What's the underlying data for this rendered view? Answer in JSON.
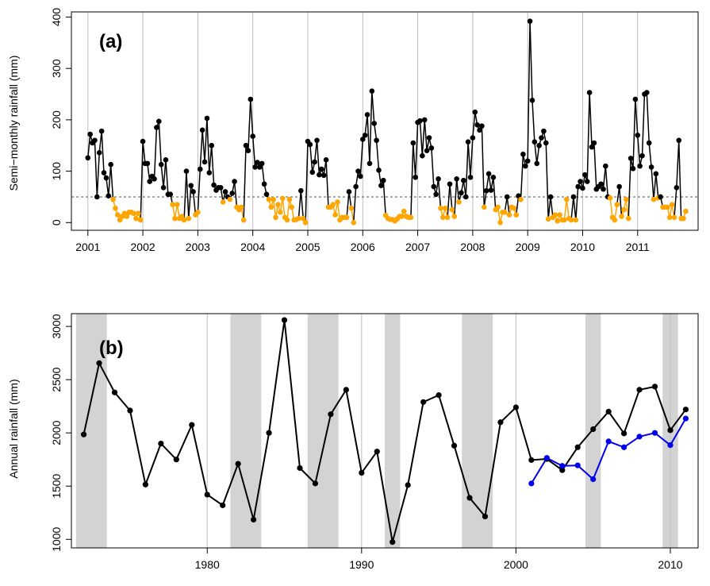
{
  "chart_data": [
    {
      "type": "line",
      "panel_label": "(a)",
      "ylabel": "Semi−monthly rainfall (mm)",
      "xlim": [
        2000.7,
        2012.1
      ],
      "ylim": [
        -15,
        410
      ],
      "x_ticks": [
        2001,
        2002,
        2003,
        2004,
        2005,
        2006,
        2007,
        2008,
        2009,
        2010,
        2011
      ],
      "y_ticks": [
        0,
        100,
        200,
        300,
        400
      ],
      "grid": "vertical lines at each year",
      "threshold": 50,
      "colors": {
        "above_threshold": "#000000",
        "below_threshold": "#ffa500",
        "grid": "#bebebe",
        "threshold": "#555555"
      },
      "series": [
        {
          "values": [
            126,
            172,
            155,
            160,
            50,
            136,
            178,
            97,
            87,
            52,
            113,
            45,
            28,
            15,
            5,
            12,
            18,
            12,
            20,
            20,
            18,
            8,
            18,
            5,
            158,
            115,
            115,
            80,
            90,
            85,
            185,
            197,
            113,
            68,
            122,
            55,
            55,
            35,
            8,
            35,
            8,
            12,
            5,
            100,
            8,
            72,
            60,
            15,
            20,
            104,
            180,
            118,
            203,
            97,
            150,
            73,
            63,
            68,
            68,
            40,
            60,
            50,
            45,
            57,
            80,
            30,
            25,
            30,
            5,
            150,
            140,
            240,
            168,
            108,
            117,
            108,
            115,
            75,
            55,
            45,
            30,
            45,
            10,
            35,
            20,
            47,
            10,
            5,
            45,
            30,
            5,
            6,
            8,
            62,
            8,
            0,
            158,
            152,
            98,
            118,
            160,
            93,
            104,
            92,
            122,
            30,
            30,
            35,
            15,
            40,
            5,
            10,
            10,
            10,
            60,
            28,
            0,
            70,
            100,
            90,
            162,
            170,
            210,
            115,
            256,
            193,
            160,
            102,
            72,
            82,
            14,
            8,
            6,
            6,
            3,
            7,
            12,
            12,
            22,
            12,
            10,
            10,
            155,
            88,
            195,
            198,
            130,
            200,
            140,
            165,
            145,
            70,
            55,
            85,
            28,
            10,
            28,
            10,
            75,
            25,
            12,
            85,
            40,
            58,
            82,
            50,
            157,
            88,
            165,
            215,
            190,
            180,
            188,
            30,
            62,
            95,
            63,
            88,
            25,
            30,
            0,
            20,
            20,
            50,
            15,
            30,
            28,
            15,
            52,
            45,
            133,
            110,
            120,
            392,
            238,
            157,
            115,
            150,
            165,
            178,
            155,
            7,
            50,
            10,
            15,
            3,
            15,
            5,
            5,
            45,
            8,
            5,
            50,
            5,
            70,
            80,
            67,
            93,
            80,
            253,
            147,
            155,
            65,
            70,
            75,
            65,
            110,
            50,
            48,
            10,
            5,
            35,
            70,
            12,
            25,
            45,
            8,
            125,
            105,
            240,
            170,
            110,
            130,
            250,
            253,
            155,
            108,
            45,
            95,
            48,
            50,
            30,
            30,
            30,
            10,
            35,
            10,
            68,
            160,
            8,
            8,
            22
          ]
        }
      ]
    },
    {
      "type": "line",
      "panel_label": "(b)",
      "ylabel": "Annual rainfall (mm)",
      "xlim": [
        1971.2,
        2011.8
      ],
      "ylim": [
        920,
        3120
      ],
      "x_ticks": [
        1980,
        1990,
        2000,
        2010
      ],
      "y_ticks": [
        1000,
        1500,
        2000,
        2500,
        3000
      ],
      "shaded_periods": [
        [
          1971.5,
          1973.5
        ],
        [
          1981.5,
          1983.5
        ],
        [
          1986.5,
          1988.5
        ],
        [
          1991.5,
          1992.5
        ],
        [
          1996.5,
          1998.5
        ],
        [
          2004.5,
          2005.5
        ],
        [
          2009.5,
          2010.5
        ]
      ],
      "colors": {
        "shading": "#d3d3d3",
        "grid": "#bebebe"
      },
      "series": [
        {
          "color": "#000000",
          "x": [
            1972,
            1973,
            1974,
            1975,
            1976,
            1977,
            1978,
            1979,
            1980,
            1981,
            1982,
            1983,
            1984,
            1985,
            1986,
            1987,
            1988,
            1989,
            1990,
            1991,
            1992,
            1993,
            1994,
            1995,
            1996,
            1997,
            1998,
            1999,
            2000,
            2001,
            2002,
            2003,
            2004,
            2005,
            2006,
            2007,
            2008,
            2009,
            2010,
            2011
          ],
          "values": [
            1985,
            2655,
            2380,
            2210,
            1515,
            1900,
            1750,
            2075,
            1420,
            1320,
            1710,
            1185,
            2000,
            3060,
            1670,
            1525,
            2175,
            2405,
            1625,
            1825,
            975,
            1510,
            2290,
            2355,
            1880,
            1390,
            1215,
            2100,
            2240,
            1745,
            1755,
            1650,
            1865,
            2035,
            2200,
            1995,
            2405,
            2435,
            2025,
            2220
          ]
        },
        {
          "color": "#0000ee",
          "x": [
            2001,
            2002,
            2003,
            2004,
            2005,
            2006,
            2007,
            2008,
            2009,
            2010,
            2011
          ],
          "values": [
            1525,
            1765,
            1690,
            1695,
            1565,
            1920,
            1865,
            1965,
            2000,
            1885,
            2135
          ]
        }
      ]
    }
  ]
}
